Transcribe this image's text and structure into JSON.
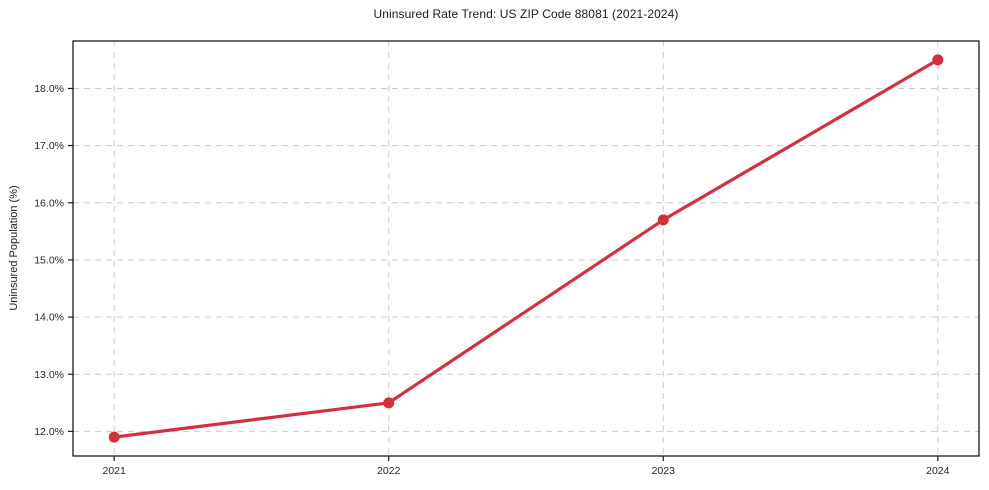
{
  "chart_data": {
    "type": "line",
    "title": "Uninsured Rate Trend: US ZIP Code 88081 (2021-2024)",
    "ylabel": "Uninsured Population (%)",
    "xlabel": "",
    "categories": [
      "2021",
      "2022",
      "2023",
      "2024"
    ],
    "x": [
      0,
      1,
      2,
      3
    ],
    "values": [
      11.9,
      12.5,
      15.7,
      18.5
    ],
    "unit": "%",
    "xlim": [
      -0.15,
      3.15
    ],
    "ylim": [
      11.57,
      18.83
    ],
    "yticks": {
      "values": [
        12,
        13,
        14,
        15,
        16,
        17,
        18
      ],
      "labels": [
        "12.0%",
        "13.0%",
        "14.0%",
        "15.0%",
        "16.0%",
        "17.0%",
        "18.0%"
      ]
    },
    "grid": "on",
    "grid_style": "dashed",
    "legend": "none",
    "colors": {
      "line": "#d32f3c",
      "marker": "#d32f3c",
      "grid": "#cccccc",
      "spine": "#1a1a1a",
      "background": "#ffffff"
    }
  }
}
